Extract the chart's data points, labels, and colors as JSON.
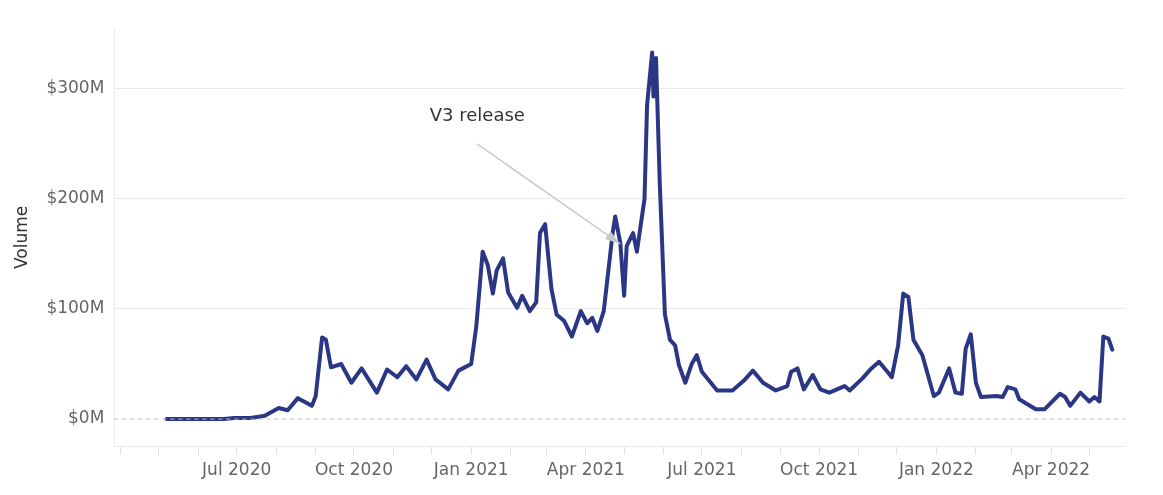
{
  "chart_data": {
    "type": "line",
    "ylabel": "Volume",
    "color": "#2b3784",
    "grid": "y",
    "legend": false,
    "marker": "none",
    "annotations": [
      {
        "text": "V3 release",
        "x": "2021-04-28",
        "y": 159
      }
    ],
    "ref_lines": [
      {
        "axis": "y",
        "value": 0,
        "line_style": "dashed",
        "color": "#bbbbbb"
      }
    ],
    "xlim": [
      "2020-03-27",
      "2022-05-29"
    ],
    "ylim": [
      -25,
      355
    ],
    "yticks": [
      {
        "value": 0,
        "label": "$0M"
      },
      {
        "value": 100,
        "label": "$100M"
      },
      {
        "value": 200,
        "label": "$200M"
      },
      {
        "value": 300,
        "label": "$300M"
      }
    ],
    "xticks": [
      {
        "value": "2020-04",
        "label": null
      },
      {
        "value": "2020-05",
        "label": null
      },
      {
        "value": "2020-06",
        "label": null
      },
      {
        "value": "2020-07",
        "label": "Jul 2020"
      },
      {
        "value": "2020-08",
        "label": null
      },
      {
        "value": "2020-09",
        "label": null
      },
      {
        "value": "2020-10",
        "label": "Oct 2020"
      },
      {
        "value": "2020-11",
        "label": null
      },
      {
        "value": "2020-12",
        "label": null
      },
      {
        "value": "2021-01",
        "label": "Jan 2021"
      },
      {
        "value": "2021-02",
        "label": null
      },
      {
        "value": "2021-03",
        "label": null
      },
      {
        "value": "2021-04",
        "label": "Apr 2021"
      },
      {
        "value": "2021-05",
        "label": null
      },
      {
        "value": "2021-06",
        "label": null
      },
      {
        "value": "2021-07",
        "label": "Jul 2021"
      },
      {
        "value": "2021-08",
        "label": null
      },
      {
        "value": "2021-09",
        "label": null
      },
      {
        "value": "2021-10",
        "label": "Oct 2021"
      },
      {
        "value": "2021-11",
        "label": null
      },
      {
        "value": "2021-12",
        "label": null
      },
      {
        "value": "2022-01",
        "label": "Jan 2022"
      },
      {
        "value": "2022-02",
        "label": null
      },
      {
        "value": "2022-03",
        "label": null
      },
      {
        "value": "2022-04",
        "label": "Apr 2022"
      },
      {
        "value": "2022-05",
        "label": null
      }
    ],
    "x": [
      "2020-05-07",
      "2020-06-21",
      "2020-06-29",
      "2020-07-12",
      "2020-07-23",
      "2020-08-03",
      "2020-08-10",
      "2020-08-18",
      "2020-08-29",
      "2020-09-01",
      "2020-09-06",
      "2020-09-09",
      "2020-09-13",
      "2020-09-21",
      "2020-09-29",
      "2020-10-07",
      "2020-10-19",
      "2020-10-27",
      "2020-11-04",
      "2020-11-11",
      "2020-11-19",
      "2020-11-27",
      "2020-12-04",
      "2020-12-14",
      "2020-12-22",
      "2021-01-01",
      "2021-01-05",
      "2021-01-10",
      "2021-01-14",
      "2021-01-18",
      "2021-01-21",
      "2021-01-26",
      "2021-01-30",
      "2021-02-06",
      "2021-02-10",
      "2021-02-16",
      "2021-02-21",
      "2021-02-24",
      "2021-02-28",
      "2021-03-05",
      "2021-03-09",
      "2021-03-15",
      "2021-03-21",
      "2021-03-28",
      "2021-04-02",
      "2021-04-06",
      "2021-04-10",
      "2021-04-15",
      "2021-04-22",
      "2021-04-24",
      "2021-04-28",
      "2021-05-01",
      "2021-05-03",
      "2021-05-08",
      "2021-05-11",
      "2021-05-17",
      "2021-05-19",
      "2021-05-23",
      "2021-05-24",
      "2021-05-26",
      "2021-05-29",
      "2021-06-02",
      "2021-06-06",
      "2021-06-10",
      "2021-06-13",
      "2021-06-18",
      "2021-06-23",
      "2021-06-27",
      "2021-07-01",
      "2021-07-13",
      "2021-07-25",
      "2021-08-03",
      "2021-08-10",
      "2021-08-18",
      "2021-08-28",
      "2021-09-06",
      "2021-09-09",
      "2021-09-14",
      "2021-09-19",
      "2021-09-26",
      "2021-10-02",
      "2021-10-09",
      "2021-10-21",
      "2021-10-25",
      "2021-11-04",
      "2021-11-11",
      "2021-11-17",
      "2021-11-25",
      "2021-11-27",
      "2021-12-02",
      "2021-12-06",
      "2021-12-10",
      "2021-12-14",
      "2021-12-21",
      "2021-12-30",
      "2022-01-03",
      "2022-01-11",
      "2022-01-16",
      "2022-01-21",
      "2022-01-24",
      "2022-01-28",
      "2022-02-01",
      "2022-02-05",
      "2022-02-17",
      "2022-02-22",
      "2022-02-26",
      "2022-03-04",
      "2022-03-07",
      "2022-03-20",
      "2022-03-27",
      "2022-04-08",
      "2022-04-12",
      "2022-04-16",
      "2022-04-24",
      "2022-05-01",
      "2022-05-05",
      "2022-05-09",
      "2022-05-12",
      "2022-05-16",
      "2022-05-19"
    ],
    "values": [
      0,
      0,
      1,
      1,
      3,
      10,
      8,
      19,
      12,
      21,
      74,
      72,
      47,
      50,
      33,
      46,
      24,
      45,
      38,
      48,
      36,
      54,
      36,
      27,
      44,
      50,
      84,
      152,
      140,
      114,
      135,
      146,
      115,
      101,
      112,
      98,
      106,
      169,
      177,
      118,
      95,
      89,
      75,
      98,
      87,
      92,
      80,
      98,
      169,
      184,
      160,
      112,
      157,
      169,
      152,
      200,
      285,
      333,
      293,
      328,
      213,
      95,
      72,
      67,
      49,
      33,
      50,
      58,
      43,
      26,
      26,
      35,
      44,
      33,
      26,
      30,
      43,
      46,
      27,
      40,
      27,
      24,
      30,
      26,
      37,
      46,
      52,
      41,
      38,
      67,
      114,
      111,
      72,
      58,
      21,
      24,
      46,
      24,
      23,
      64,
      77,
      33,
      20,
      21,
      20,
      29,
      27,
      18,
      9,
      9,
      23,
      20,
      12,
      24,
      16,
      20,
      16,
      75,
      73,
      63
    ]
  }
}
